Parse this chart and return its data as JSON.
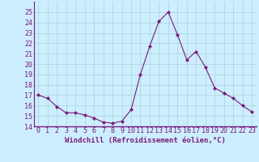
{
  "x": [
    0,
    1,
    2,
    3,
    4,
    5,
    6,
    7,
    8,
    9,
    10,
    11,
    12,
    13,
    14,
    15,
    16,
    17,
    18,
    19,
    20,
    21,
    22,
    23
  ],
  "y": [
    17.0,
    16.7,
    15.9,
    15.3,
    15.3,
    15.1,
    14.8,
    14.4,
    14.3,
    14.5,
    15.6,
    19.0,
    21.7,
    24.1,
    25.0,
    22.8,
    20.4,
    21.2,
    19.7,
    17.7,
    17.2,
    16.7,
    16.0,
    15.4
  ],
  "line_color": "#7b1a7b",
  "marker": "D",
  "marker_size": 2.2,
  "bg_color": "#cceeff",
  "grid_color": "#aad4d4",
  "xlabel": "Windchill (Refroidissement éolien,°C)",
  "xlabel_color": "#7b1a7b",
  "xlabel_fontsize": 6.5,
  "tick_color": "#7b1a7b",
  "tick_fontsize": 6,
  "ylim": [
    14,
    26
  ],
  "yticks": [
    14,
    15,
    16,
    17,
    18,
    19,
    20,
    21,
    22,
    23,
    24,
    25
  ],
  "xlim_min": -0.5,
  "xlim_max": 23.5,
  "xticks": [
    0,
    1,
    2,
    3,
    4,
    5,
    6,
    7,
    8,
    9,
    10,
    11,
    12,
    13,
    14,
    15,
    16,
    17,
    18,
    19,
    20,
    21,
    22,
    23
  ],
  "xtick_labels": [
    "0",
    "1",
    "2",
    "3",
    "4",
    "5",
    "6",
    "7",
    "8",
    "9",
    "10",
    "11",
    "12",
    "13",
    "14",
    "15",
    "16",
    "17",
    "18",
    "19",
    "20",
    "21",
    "22",
    "23"
  ],
  "separator_color": "#7b1a7b",
  "linewidth": 0.8
}
